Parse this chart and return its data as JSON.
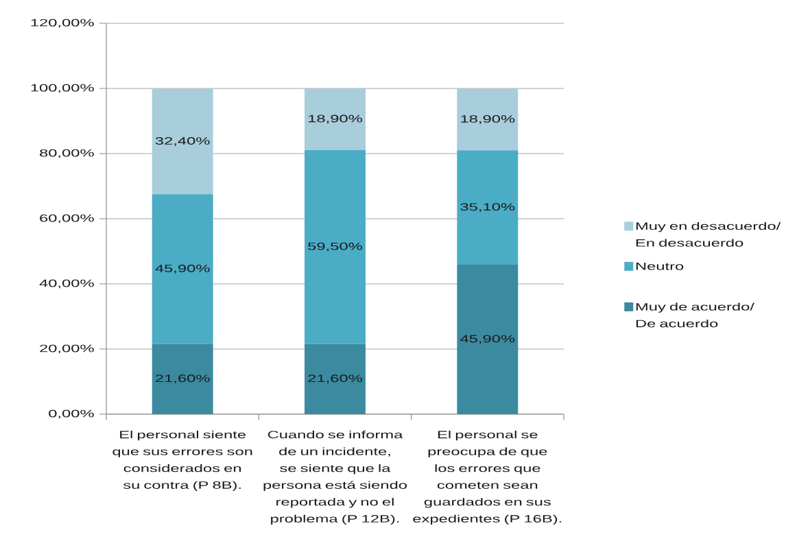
{
  "chart_data": {
    "type": "bar",
    "stacked": true,
    "categories": [
      "El personal siente que sus errores son considerados en su contra (P 8B).",
      "Cuando se informa de un incidente, se siente que la persona está siendo reportada y no el problema (P 12B).",
      "El personal se preocupa de que los errores que cometen sean guardados en sus expedientes (P 16B)."
    ],
    "series": [
      {
        "name": "Muy de acuerdo/ De acuerdo",
        "color": "#3b8aa0",
        "values": [
          21.6,
          21.6,
          45.9
        ],
        "value_labels": [
          "21,60%",
          "21,60%",
          "45,90%"
        ]
      },
      {
        "name": "Neutro",
        "color": "#4bacc6",
        "values": [
          45.9,
          59.5,
          35.1
        ],
        "value_labels": [
          "45,90%",
          "59,50%",
          "35,10%"
        ]
      },
      {
        "name": "Muy en desacuerdo/ En desacuerdo",
        "color": "#a8cddb",
        "values": [
          32.4,
          18.9,
          18.9
        ],
        "value_labels": [
          "32,40%",
          "18,90%",
          "18,90%"
        ]
      }
    ],
    "ylim": [
      0,
      120
    ],
    "yticks": [
      {
        "value": 0,
        "label": "0,00%"
      },
      {
        "value": 20,
        "label": "20,00%"
      },
      {
        "value": 40,
        "label": "40,00%"
      },
      {
        "value": 60,
        "label": "60,00%"
      },
      {
        "value": 80,
        "label": "80,00%"
      },
      {
        "value": 100,
        "label": "100,00%"
      },
      {
        "value": 120,
        "label": "120,00%"
      }
    ],
    "grid": "y",
    "legend": "right"
  }
}
